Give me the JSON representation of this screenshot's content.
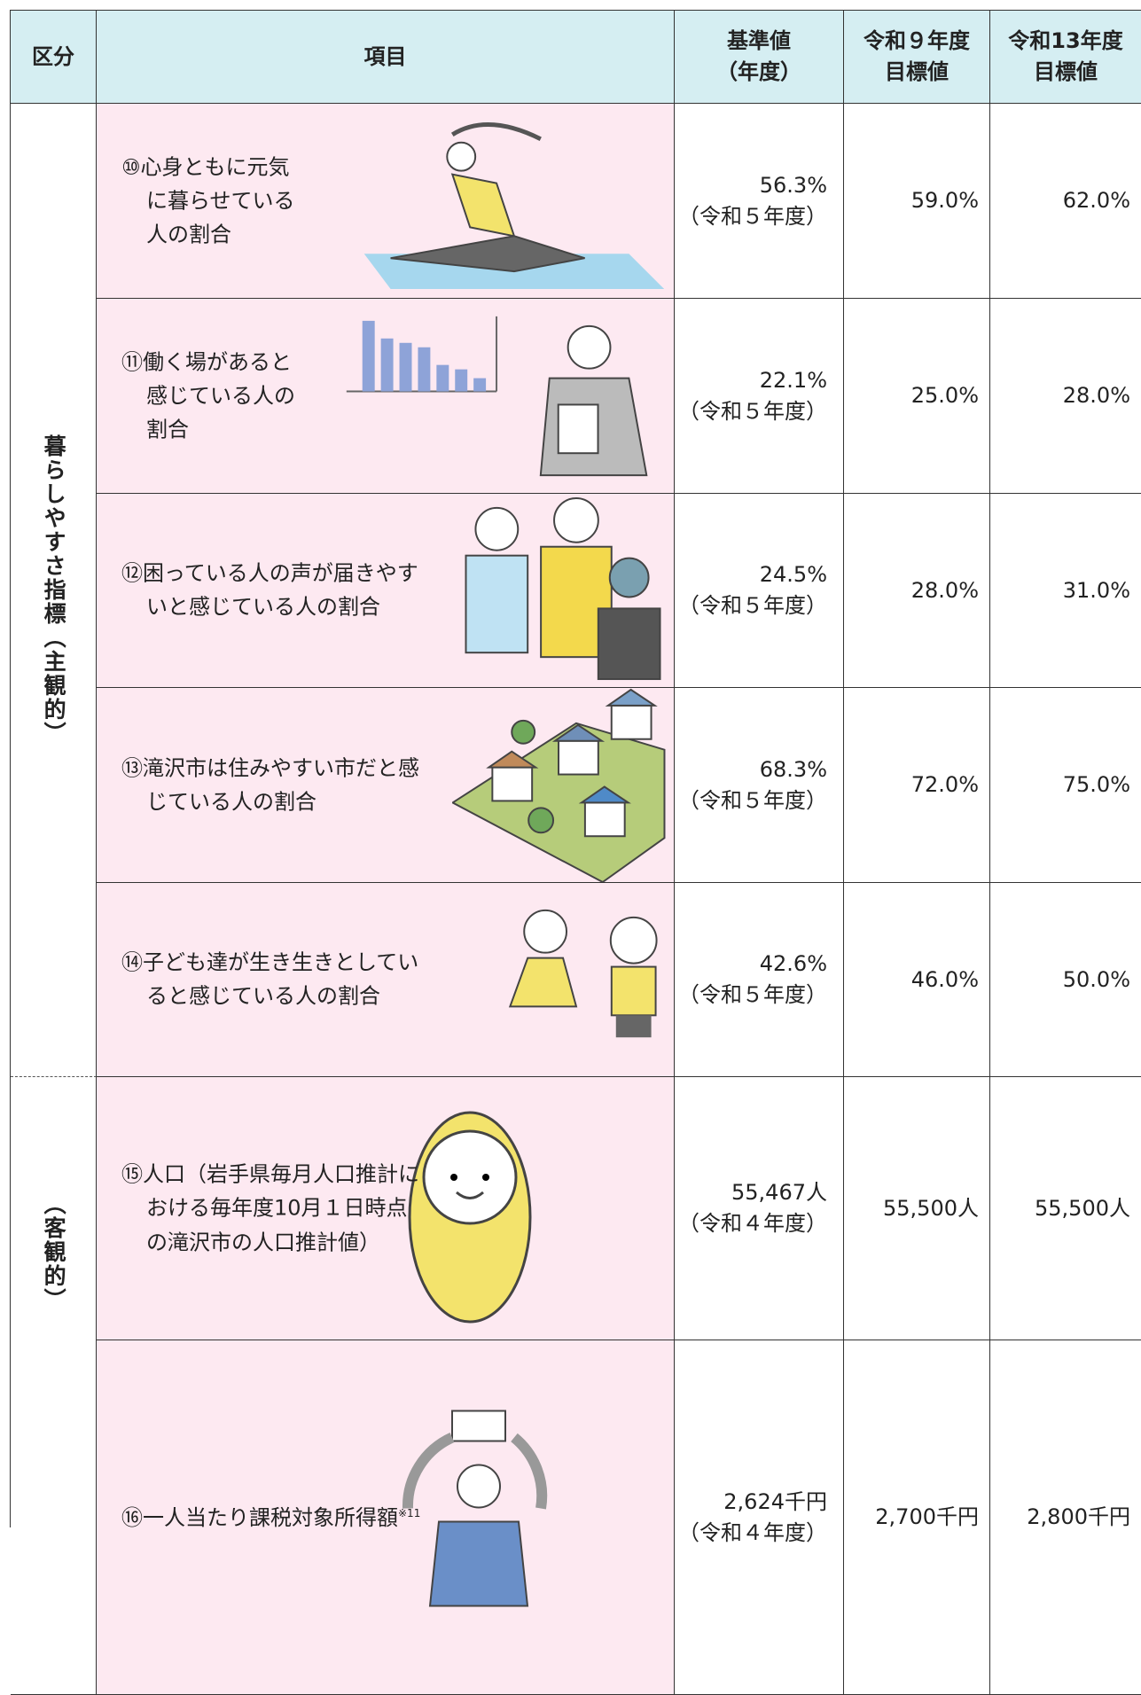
{
  "header": {
    "category": "区分",
    "item": "項目",
    "baseline": [
      "基準値",
      "（年度）"
    ],
    "target_r9": [
      "令和９年度",
      "目標値"
    ],
    "target_r13": [
      "令和13年度",
      "目標値"
    ]
  },
  "categories": [
    {
      "label": "暮らしやすさ指標（主観的）"
    },
    {
      "label": "（客観的）"
    }
  ],
  "rows": [
    {
      "label_lines": [
        "⑩心身ともに元気",
        "に暮らせている",
        "人の割合"
      ],
      "baseline": "56.3%",
      "baseline_year": "（令和５年度）",
      "target_r9": "59.0%",
      "target_r13": "62.0%"
    },
    {
      "label_lines": [
        "⑪働く場があると",
        "感じている人の",
        "割合"
      ],
      "baseline": "22.1%",
      "baseline_year": "（令和５年度）",
      "target_r9": "25.0%",
      "target_r13": "28.0%"
    },
    {
      "label_lines": [
        "⑫困っている人の声が届きやす",
        "いと感じている人の割合"
      ],
      "baseline": "24.5%",
      "baseline_year": "（令和５年度）",
      "target_r9": "28.0%",
      "target_r13": "31.0%"
    },
    {
      "label_lines": [
        "⑬滝沢市は住みやすい市だと感",
        "じている人の割合"
      ],
      "baseline": "68.3%",
      "baseline_year": "（令和５年度）",
      "target_r9": "72.0%",
      "target_r13": "75.0%"
    },
    {
      "label_lines": [
        "⑭子ども達が生き生きとしてい",
        "ると感じている人の割合"
      ],
      "baseline": "42.6%",
      "baseline_year": "（令和５年度）",
      "target_r9": "46.0%",
      "target_r13": "50.0%"
    },
    {
      "label_lines": [
        "⑮人口（岩手県毎月人口推計に",
        "おける毎年度10月１日時点",
        "の滝沢市の人口推計値）"
      ],
      "baseline": "55,467人",
      "baseline_year": "（令和４年度）",
      "target_r9": "55,500人",
      "target_r13": "55,500人"
    },
    {
      "label_lines": [
        "⑯一人当たり課税対象所得額"
      ],
      "note": "※11",
      "baseline": "2,624千円",
      "baseline_year": "（令和４年度）",
      "target_r9": "2,700千円",
      "target_r13": "2,800千円"
    }
  ]
}
